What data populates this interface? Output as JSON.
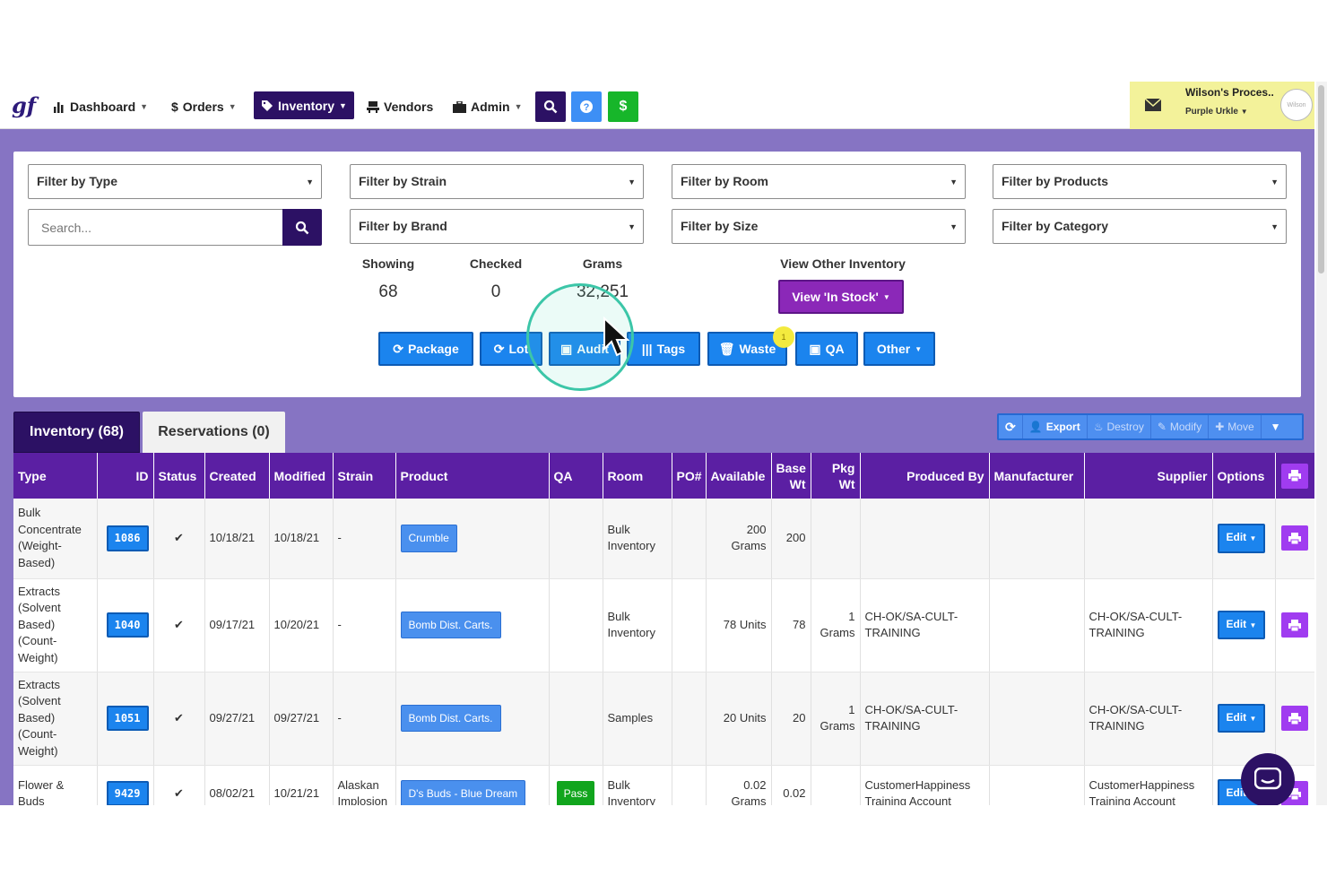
{
  "nav": {
    "logo": "gf",
    "items": [
      {
        "label": "Dashboard",
        "icon": "bar-chart-icon"
      },
      {
        "label": "Orders",
        "icon": "dollar-icon"
      },
      {
        "label": "Inventory",
        "icon": "tag-icon"
      },
      {
        "label": "Vendors",
        "icon": "vendor-icon"
      },
      {
        "label": "Admin",
        "icon": "briefcase-icon"
      }
    ],
    "money_label": "$",
    "user": {
      "name": "Wilson's Proces..",
      "sub": "Purple Urkle",
      "avatar_text": "Wilson"
    }
  },
  "filters": {
    "type": "Filter by Type",
    "strain": "Filter by Strain",
    "room": "Filter by Room",
    "products": "Filter by Products",
    "brand": "Filter by Brand",
    "size": "Filter by Size",
    "category": "Filter by Category",
    "search_placeholder": "Search..."
  },
  "stats": {
    "showing_label": "Showing",
    "showing_value": "68",
    "checked_label": "Checked",
    "checked_value": "0",
    "grams_label": "Grams",
    "grams_value": "32,251",
    "view_label": "View Other Inventory",
    "view_button": "View 'In Stock'"
  },
  "actions": {
    "package": "Package",
    "lot": "Lot",
    "audit": "Audit",
    "tags": "Tags",
    "waste": "Waste",
    "qa": "QA",
    "other": "Other"
  },
  "tabs": {
    "inventory": "Inventory (68)",
    "reservations": "Reservations (0)"
  },
  "bulk": {
    "export": "Export",
    "destroy": "Destroy",
    "modify": "Modify",
    "move": "Move"
  },
  "click_marker": "1",
  "table": {
    "headers": {
      "type": "Type",
      "id": "ID",
      "status": "Status",
      "created": "Created",
      "modified": "Modified",
      "strain": "Strain",
      "product": "Product",
      "qa": "QA",
      "room": "Room",
      "po": "PO#",
      "available": "Available",
      "base_wt": "Base Wt",
      "pkg_wt": "Pkg Wt",
      "produced_by": "Produced By",
      "manufacturer": "Manufacturer",
      "supplier": "Supplier",
      "options": "Options"
    },
    "edit_label": "Edit",
    "check_mark": "✔",
    "rows": [
      {
        "type": "Bulk Concentrate (Weight-Based)",
        "id": "1086",
        "created": "10/18/21",
        "modified": "10/18/21",
        "strain": "-",
        "product": "Crumble",
        "qa": "",
        "room": "Bulk Inventory",
        "po": "",
        "available": "200 Grams",
        "base_wt": "200",
        "pkg_wt": "",
        "produced_by": "",
        "manufacturer": "",
        "supplier": ""
      },
      {
        "type": "Extracts (Solvent Based) (Count-Weight)",
        "id": "1040",
        "created": "09/17/21",
        "modified": "10/20/21",
        "strain": "-",
        "product": "Bomb Dist. Carts.",
        "qa": "",
        "room": "Bulk Inventory",
        "po": "",
        "available": "78 Units",
        "base_wt": "78",
        "pkg_wt": "1 Grams",
        "produced_by": "CH-OK/SA-CULT-TRAINING",
        "manufacturer": "",
        "supplier": "CH-OK/SA-CULT-TRAINING"
      },
      {
        "type": "Extracts (Solvent Based) (Count-Weight)",
        "id": "1051",
        "created": "09/27/21",
        "modified": "09/27/21",
        "strain": "-",
        "product": "Bomb Dist. Carts.",
        "qa": "",
        "room": "Samples",
        "po": "",
        "available": "20 Units",
        "base_wt": "20",
        "pkg_wt": "1 Grams",
        "produced_by": "CH-OK/SA-CULT-TRAINING",
        "manufacturer": "",
        "supplier": "CH-OK/SA-CULT-TRAINING"
      },
      {
        "type": "Flower & Buds",
        "id": "9429",
        "created": "08/02/21",
        "modified": "10/21/21",
        "strain": "Alaskan Implosion",
        "product": "D's Buds - Blue Dream",
        "qa": "Pass",
        "room": "Bulk Inventory",
        "po": "",
        "available": "0.02 Grams",
        "base_wt": "0.02",
        "pkg_wt": "",
        "produced_by": "CustomerHappiness Training Account",
        "manufacturer": "",
        "supplier": "CustomerHappiness Training Account"
      }
    ]
  },
  "colors": {
    "brand_dark": "#2c1164",
    "header_purple": "#5b1fa3",
    "primary_blue": "#1b84ee",
    "page_purple": "#8674c3"
  }
}
